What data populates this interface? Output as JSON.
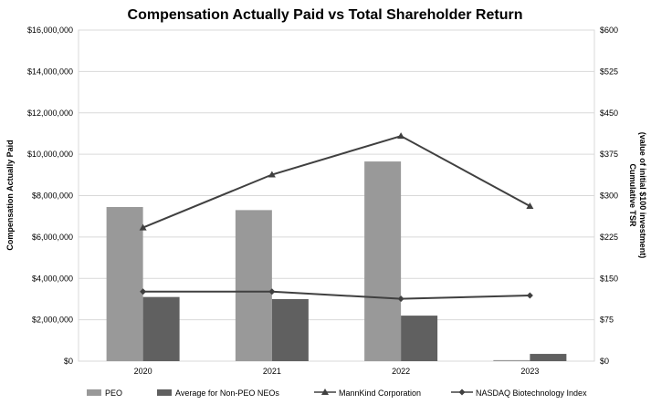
{
  "chart_data": {
    "type": "bar",
    "title": "Compensation Actually Paid vs Total Shareholder Return",
    "categories": [
      "2020",
      "2021",
      "2022",
      "2023"
    ],
    "ylabel": "Compensation Actually Paid",
    "y2label_line1": "Cumulative TSR",
    "y2label_line2": "(value of initial $100 investment)",
    "ylim": [
      0,
      16000000
    ],
    "y2lim": [
      0,
      600
    ],
    "yticks": [
      "$0",
      "$2,000,000",
      "$4,000,000",
      "$6,000,000",
      "$8,000,000",
      "$10,000,000",
      "$12,000,000",
      "$14,000,000",
      "$16,000,000"
    ],
    "y2ticks": [
      "$0",
      "$75",
      "$150",
      "$225",
      "$300",
      "$375",
      "$450",
      "$525",
      "$600"
    ],
    "series": [
      {
        "name": "PEO",
        "kind": "bar",
        "axis": "left",
        "color": "#999999",
        "values": [
          7450000,
          7300000,
          9650000,
          50000
        ]
      },
      {
        "name": "Average for Non-PEO NEOs",
        "kind": "bar",
        "axis": "left",
        "color": "#606060",
        "values": [
          3100000,
          3000000,
          2200000,
          350000
        ]
      },
      {
        "name": "MannKind Corporation",
        "kind": "line",
        "marker": "triangle",
        "axis": "right",
        "color": "#404040",
        "values": [
          242,
          338,
          408,
          281
        ]
      },
      {
        "name": "NASDAQ Biotechnology Index",
        "kind": "line",
        "marker": "diamond",
        "axis": "right",
        "color": "#404040",
        "values": [
          126,
          126,
          113,
          119
        ]
      }
    ],
    "grid": true,
    "legend_position": "bottom"
  }
}
